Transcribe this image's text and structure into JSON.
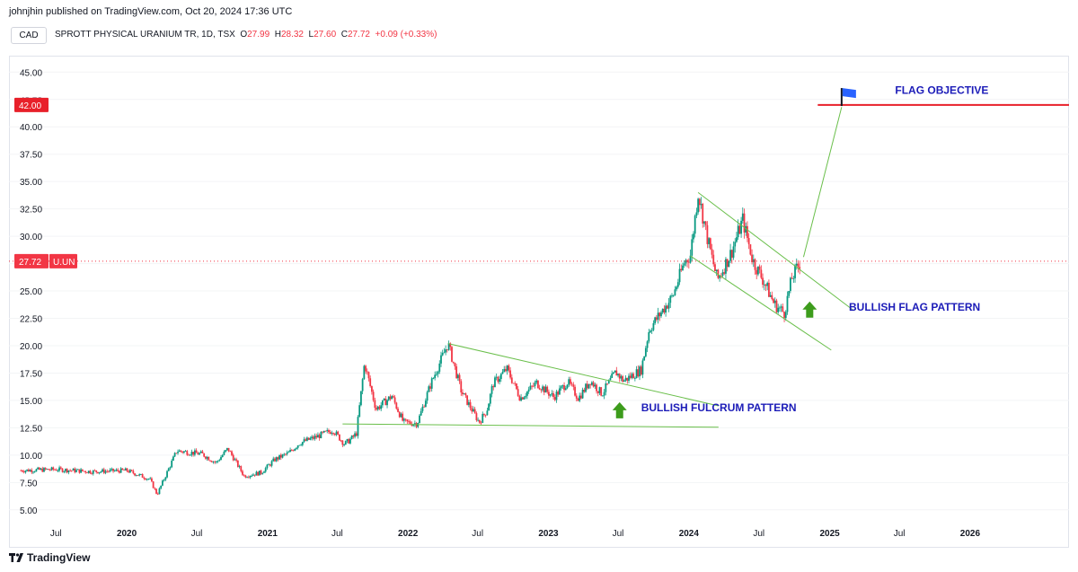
{
  "header": {
    "published": "johnjhin published on TradingView.com, Oct 20, 2024 17:36 UTC",
    "currency": "CAD"
  },
  "symbol": {
    "name": "SPROTT PHYSICAL URANIUM TR, 1D, TSX",
    "open_label": "O",
    "open": "27.99",
    "high_label": "H",
    "high": "28.32",
    "low_label": "L",
    "low": "27.60",
    "close_label": "C",
    "close": "27.72",
    "change": "+0.09 (+0.33%)"
  },
  "price_tags": {
    "objective_value": "42.00",
    "objective_hidden_tick": "42.50",
    "last_value": "27.72",
    "last_ticker": "U.UN"
  },
  "footer": {
    "brand": "TradingView",
    "logo_icon": "tradingview-logo-icon"
  },
  "colors": {
    "up": "#089981",
    "down": "#f23645",
    "trendline": "#6abf4b",
    "annotation_text": "#1c1cb8",
    "objective_line": "#e8202a",
    "flag": "#2962ff",
    "arrow": "#3d9c1c",
    "last_price_line": "#f23645"
  },
  "chart_data": {
    "type": "candlestick",
    "title": "SPROTT PHYSICAL URANIUM TR, 1D, TSX",
    "xlabel": "",
    "ylabel": "",
    "ylim": [
      4.0,
      46.5
    ],
    "xlim": [
      "2019-03-01",
      "2026-09-15"
    ],
    "y_ticks": [
      "45.00",
      "42.50",
      "40.00",
      "37.50",
      "35.00",
      "32.50",
      "30.00",
      "27.50",
      "25.00",
      "22.50",
      "20.00",
      "17.50",
      "15.00",
      "12.50",
      "10.00",
      "7.50",
      "5.00"
    ],
    "x_ticks": [
      {
        "label": "Jul",
        "date": "2019-07-01"
      },
      {
        "label": "2020",
        "date": "2020-01-01"
      },
      {
        "label": "Jul",
        "date": "2020-07-01"
      },
      {
        "label": "2021",
        "date": "2021-01-01"
      },
      {
        "label": "Jul",
        "date": "2021-07-01"
      },
      {
        "label": "2022",
        "date": "2022-01-01"
      },
      {
        "label": "Jul",
        "date": "2022-07-01"
      },
      {
        "label": "2023",
        "date": "2023-01-01"
      },
      {
        "label": "Jul",
        "date": "2023-07-01"
      },
      {
        "label": "2024",
        "date": "2024-01-01"
      },
      {
        "label": "Jul",
        "date": "2024-07-01"
      },
      {
        "label": "2025",
        "date": "2025-01-01"
      },
      {
        "label": "Jul",
        "date": "2025-07-01"
      },
      {
        "label": "2026",
        "date": "2026-01-01"
      }
    ],
    "price_path": [
      [
        "2019-04-01",
        8.6
      ],
      [
        "2019-07-01",
        8.7
      ],
      [
        "2019-10-01",
        8.5
      ],
      [
        "2020-01-01",
        8.6
      ],
      [
        "2020-03-01",
        7.8
      ],
      [
        "2020-03-20",
        6.4
      ],
      [
        "2020-05-10",
        10.4
      ],
      [
        "2020-07-15",
        10.1
      ],
      [
        "2020-08-20",
        9.3
      ],
      [
        "2020-09-20",
        10.6
      ],
      [
        "2020-11-01",
        8.1
      ],
      [
        "2020-12-15",
        8.4
      ],
      [
        "2021-01-20",
        9.6
      ],
      [
        "2021-02-25",
        10.2
      ],
      [
        "2021-03-25",
        11.1
      ],
      [
        "2021-05-10",
        11.7
      ],
      [
        "2021-06-20",
        12.3
      ],
      [
        "2021-07-20",
        11.0
      ],
      [
        "2021-08-10",
        11.6
      ],
      [
        "2021-08-20",
        12.0
      ],
      [
        "2021-09-10",
        18.4
      ],
      [
        "2021-10-10",
        14.2
      ],
      [
        "2021-11-20",
        15.4
      ],
      [
        "2021-12-20",
        13.0
      ],
      [
        "2022-01-25",
        12.9
      ],
      [
        "2022-03-01",
        16.5
      ],
      [
        "2022-04-15",
        20.2
      ],
      [
        "2022-05-20",
        15.8
      ],
      [
        "2022-07-05",
        13.0
      ],
      [
        "2022-07-25",
        14.1
      ],
      [
        "2022-08-10",
        16.5
      ],
      [
        "2022-09-15",
        17.9
      ],
      [
        "2022-10-20",
        15.2
      ],
      [
        "2022-12-01",
        16.6
      ],
      [
        "2023-01-15",
        15.3
      ],
      [
        "2023-02-20",
        16.7
      ],
      [
        "2023-03-20",
        15.2
      ],
      [
        "2023-04-20",
        16.8
      ],
      [
        "2023-05-20",
        15.6
      ],
      [
        "2023-06-25",
        17.6
      ],
      [
        "2023-07-15",
        16.8
      ],
      [
        "2023-07-25",
        17.0
      ],
      [
        "2023-08-30",
        17.8
      ],
      [
        "2023-09-20",
        21.5
      ],
      [
        "2023-10-20",
        23.0
      ],
      [
        "2023-11-20",
        24.5
      ],
      [
        "2023-12-20",
        27.6
      ],
      [
        "2024-01-05",
        28.3
      ],
      [
        "2024-01-25",
        34.0
      ],
      [
        "2024-02-20",
        29.5
      ],
      [
        "2024-03-15",
        26.0
      ],
      [
        "2024-04-20",
        28.5
      ],
      [
        "2024-05-20",
        31.5
      ],
      [
        "2024-06-15",
        27.8
      ],
      [
        "2024-07-15",
        25.8
      ],
      [
        "2024-08-10",
        23.8
      ],
      [
        "2024-09-05",
        23.0
      ],
      [
        "2024-09-25",
        26.2
      ],
      [
        "2024-10-18",
        27.72
      ]
    ],
    "trendlines": [
      {
        "name": "fulcrum-top",
        "from": [
          "2022-04-15",
          20.2
        ],
        "to": [
          "2024-03-18",
          14.5
        ]
      },
      {
        "name": "fulcrum-base",
        "from": [
          "2021-07-15",
          12.85
        ],
        "to": [
          "2024-03-18",
          12.55
        ]
      },
      {
        "name": "flag-top",
        "from": [
          "2024-01-25",
          34.0
        ],
        "to": [
          "2025-03-05",
          23.2
        ]
      },
      {
        "name": "flag-bottom",
        "from": [
          "2024-01-05",
          28.2
        ],
        "to": [
          "2025-01-05",
          19.6
        ]
      },
      {
        "name": "target-projection",
        "from": [
          "2024-10-25",
          28.1
        ],
        "to": [
          "2025-02-01",
          41.8
        ]
      }
    ],
    "annotations": [
      {
        "text": "FLAG OBJECTIVE",
        "date": "2025-06-20",
        "value": 43.0
      },
      {
        "text": "BULLISH FLAG PATTERN",
        "date": "2025-02-20",
        "value": 23.2
      },
      {
        "text": "BULLISH FULCRUM PATTERN",
        "date": "2023-08-30",
        "value": 14.0
      }
    ],
    "arrows": [
      {
        "date": "2023-07-05",
        "value": 14.1
      },
      {
        "date": "2024-11-10",
        "value": 23.3
      }
    ],
    "objective_line": {
      "value": 42.0,
      "from": "2024-12-01",
      "to": "2026-09-15"
    },
    "flag_marker": {
      "date": "2025-02-01",
      "value": 41.9
    },
    "last_price_line": 27.72
  }
}
